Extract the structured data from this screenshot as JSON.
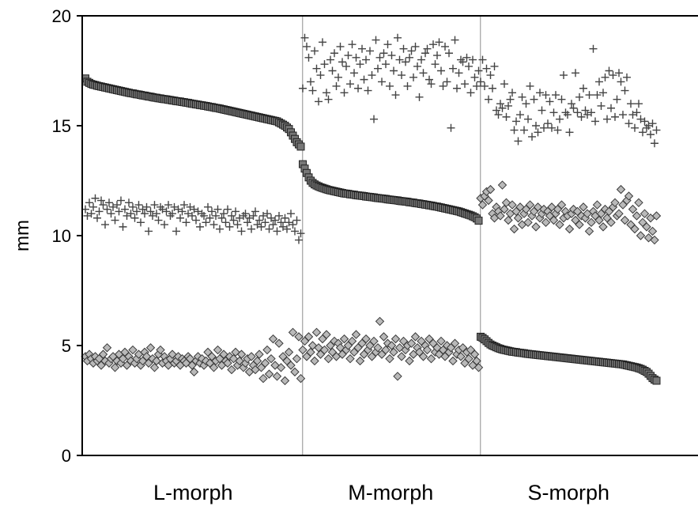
{
  "chart_data": {
    "type": "scatter",
    "title": "",
    "xlabel": "",
    "ylabel": "mm",
    "ylim": [
      0,
      20
    ],
    "yticks": [
      "0",
      "5",
      "10",
      "15",
      "20"
    ],
    "grid": false,
    "legend": "none",
    "groups": [
      "L-morph",
      "M-morph",
      "S-morph"
    ],
    "group_point_counts": [
      110,
      90,
      90
    ],
    "colors": {
      "axis": "#000000",
      "separator": "#a0a0a0",
      "square_fill": "#777777",
      "square_stroke": "#222222",
      "diamond_fill": "#b9b9b9",
      "diamond_stroke": "#3a3a3a",
      "plus": "#444444"
    },
    "series": [
      {
        "marker": "square",
        "description": "sorted descending within each morph",
        "segments": [
          {
            "group": "L-morph",
            "values": [
              17.15,
              17.0,
              16.95,
              16.9,
              16.87,
              16.85,
              16.82,
              16.8,
              16.78,
              16.76,
              16.74,
              16.72,
              16.7,
              16.68,
              16.66,
              16.64,
              16.62,
              16.6,
              16.58,
              16.56,
              16.54,
              16.52,
              16.5,
              16.48,
              16.47,
              16.45,
              16.43,
              16.42,
              16.4,
              16.38,
              16.37,
              16.35,
              16.33,
              16.32,
              16.3,
              16.28,
              16.27,
              16.25,
              16.24,
              16.22,
              16.21,
              16.2,
              16.18,
              16.17,
              16.15,
              16.14,
              16.12,
              16.11,
              16.1,
              16.08,
              16.07,
              16.05,
              16.04,
              16.02,
              16.0,
              15.99,
              15.97,
              15.96,
              15.94,
              15.93,
              15.91,
              15.9,
              15.88,
              15.86,
              15.85,
              15.83,
              15.81,
              15.8,
              15.78,
              15.76,
              15.74,
              15.72,
              15.7,
              15.68,
              15.66,
              15.64,
              15.62,
              15.6,
              15.58,
              15.56,
              15.54,
              15.52,
              15.5,
              15.48,
              15.46,
              15.44,
              15.42,
              15.4,
              15.38,
              15.36,
              15.34,
              15.32,
              15.3,
              15.28,
              15.26,
              15.24,
              15.22,
              15.2,
              15.15,
              15.1,
              15.05,
              15.0,
              14.92,
              14.85,
              14.7,
              14.55,
              14.4,
              14.25,
              14.15,
              14.05
            ]
          },
          {
            "group": "M-morph",
            "values": [
              13.25,
              13.05,
              12.85,
              12.65,
              12.5,
              12.4,
              12.33,
              12.28,
              12.24,
              12.2,
              12.17,
              12.14,
              12.11,
              12.08,
              12.06,
              12.04,
              12.02,
              12.0,
              11.98,
              11.96,
              11.94,
              11.92,
              11.91,
              11.9,
              11.88,
              11.87,
              11.86,
              11.84,
              11.83,
              11.82,
              11.81,
              11.8,
              11.78,
              11.77,
              11.76,
              11.75,
              11.74,
              11.72,
              11.71,
              11.7,
              11.69,
              11.68,
              11.67,
              11.65,
              11.64,
              11.63,
              11.62,
              11.61,
              11.6,
              11.58,
              11.57,
              11.56,
              11.55,
              11.54,
              11.52,
              11.51,
              11.5,
              11.48,
              11.47,
              11.46,
              11.44,
              11.43,
              11.41,
              11.4,
              11.38,
              11.37,
              11.35,
              11.33,
              11.32,
              11.3,
              11.28,
              11.26,
              11.24,
              11.22,
              11.2,
              11.18,
              11.16,
              11.14,
              11.12,
              11.1,
              11.07,
              11.04,
              11.01,
              10.98,
              10.95,
              10.92,
              10.88,
              10.84,
              10.78,
              10.68
            ]
          },
          {
            "group": "S-morph",
            "values": [
              5.4,
              5.35,
              5.28,
              5.2,
              5.12,
              5.05,
              5.0,
              4.96,
              4.92,
              4.88,
              4.85,
              4.82,
              4.8,
              4.78,
              4.76,
              4.74,
              4.72,
              4.71,
              4.7,
              4.68,
              4.67,
              4.66,
              4.65,
              4.63,
              4.62,
              4.61,
              4.6,
              4.59,
              4.58,
              4.57,
              4.56,
              4.55,
              4.54,
              4.53,
              4.52,
              4.51,
              4.5,
              4.49,
              4.48,
              4.47,
              4.46,
              4.45,
              4.44,
              4.43,
              4.42,
              4.41,
              4.4,
              4.39,
              4.38,
              4.37,
              4.36,
              4.35,
              4.34,
              4.33,
              4.32,
              4.31,
              4.3,
              4.29,
              4.28,
              4.27,
              4.26,
              4.25,
              4.24,
              4.23,
              4.22,
              4.21,
              4.2,
              4.19,
              4.18,
              4.17,
              4.16,
              4.15,
              4.14,
              4.12,
              4.1,
              4.08,
              4.06,
              4.04,
              4.02,
              4.0,
              3.97,
              3.94,
              3.9,
              3.85,
              3.8,
              3.72,
              3.62,
              3.52,
              3.45,
              3.4
            ]
          }
        ]
      },
      {
        "marker": "plus",
        "segments": [
          {
            "group": "L-morph",
            "values": [
              11.2,
              10.9,
              11.5,
              11.0,
              11.3,
              11.7,
              10.8,
              11.1,
              11.6,
              11.4,
              10.5,
              11.2,
              11.5,
              11.0,
              11.3,
              10.7,
              11.4,
              11.1,
              11.6,
              10.4,
              11.2,
              10.9,
              11.5,
              11.0,
              11.3,
              10.8,
              11.1,
              11.4,
              10.6,
              11.2,
              11.0,
              11.3,
              10.2,
              11.1,
              10.9,
              11.4,
              11.0,
              10.7,
              11.3,
              11.2,
              10.5,
              11.1,
              11.4,
              10.9,
              11.0,
              11.3,
              10.2,
              11.2,
              10.8,
              11.1,
              11.4,
              10.6,
              11.0,
              11.3,
              10.9,
              11.2,
              10.7,
              11.1,
              10.4,
              11.0,
              10.9,
              10.6,
              11.3,
              10.8,
              11.1,
              10.5,
              10.9,
              11.2,
              10.3,
              10.8,
              11.0,
              10.6,
              11.2,
              10.4,
              10.9,
              10.7,
              11.1,
              10.5,
              10.8,
              10.2,
              10.9,
              11.0,
              10.6,
              10.8,
              10.3,
              10.9,
              11.1,
              10.5,
              10.7,
              10.4,
              10.9,
              10.6,
              11.0,
              10.3,
              10.8,
              10.5,
              10.7,
              10.2,
              10.9,
              10.6,
              10.4,
              10.8,
              10.3,
              10.6,
              11.0,
              10.5,
              10.2,
              10.7,
              9.8,
              10.1
            ]
          },
          {
            "group": "M-morph",
            "values": [
              16.7,
              19.0,
              18.6,
              18.1,
              17.0,
              16.6,
              18.4,
              17.6,
              16.1,
              17.3,
              18.8,
              17.8,
              16.5,
              16.2,
              18.0,
              17.5,
              18.3,
              16.8,
              17.2,
              18.6,
              17.9,
              16.5,
              17.7,
              18.2,
              16.9,
              18.7,
              17.4,
              18.1,
              16.7,
              17.8,
              18.5,
              17.1,
              18.0,
              16.6,
              18.4,
              17.3,
              15.3,
              18.9,
              17.6,
              18.1,
              17.0,
              18.3,
              17.8,
              18.7,
              16.8,
              18.2,
              17.5,
              16.4,
              19.0,
              18.0,
              17.3,
              18.5,
              17.9,
              16.8,
              18.1,
              18.4,
              17.2,
              18.6,
              17.7,
              16.3,
              18.0,
              17.4,
              18.3,
              18.5,
              17.1,
              16.9,
              18.7,
              17.8,
              18.2,
              18.8,
              17.5,
              16.8,
              18.6,
              17.0,
              18.3,
              14.9,
              17.6,
              18.9,
              16.7,
              17.4,
              18.0,
              17.9,
              16.9,
              18.1,
              17.7,
              16.5,
              18.0,
              17.2,
              16.8,
              17.5
            ]
          },
          {
            "group": "S-morph",
            "values": [
              17.0,
              18.0,
              16.8,
              17.6,
              16.2,
              17.3,
              16.7,
              17.7,
              15.7,
              15.5,
              16.0,
              15.8,
              16.9,
              15.4,
              15.9,
              16.2,
              16.5,
              14.8,
              15.2,
              14.3,
              15.5,
              16.3,
              14.8,
              16.0,
              15.3,
              16.8,
              14.5,
              16.2,
              15.0,
              14.7,
              16.5,
              15.7,
              14.9,
              16.4,
              15.1,
              16.1,
              14.9,
              15.6,
              16.4,
              14.8,
              15.3,
              16.2,
              17.3,
              15.6,
              15.5,
              14.7,
              16.0,
              15.8,
              17.4,
              15.6,
              16.3,
              15.4,
              16.7,
              15.7,
              15.5,
              16.4,
              15.6,
              18.5,
              15.2,
              16.4,
              17.0,
              15.9,
              16.5,
              17.2,
              15.3,
              17.5,
              15.8,
              17.3,
              15.4,
              16.2,
              17.4,
              17.0,
              15.5,
              16.6,
              17.2,
              15.1,
              16.0,
              15.5,
              14.9,
              15.6,
              16.0,
              15.3,
              14.7,
              15.2,
              14.9,
              15.0,
              14.6,
              15.1,
              14.2,
              14.8
            ]
          }
        ]
      },
      {
        "marker": "diamond",
        "segments": [
          {
            "group": "L-morph",
            "values": [
              4.5,
              4.3,
              4.6,
              4.4,
              4.2,
              4.5,
              4.3,
              4.4,
              4.1,
              4.6,
              4.3,
              4.9,
              4.2,
              4.4,
              4.5,
              4.0,
              4.3,
              4.6,
              4.2,
              4.4,
              4.7,
              4.1,
              4.5,
              4.3,
              4.8,
              4.2,
              4.4,
              4.6,
              4.1,
              4.3,
              4.7,
              4.5,
              4.2,
              4.9,
              4.4,
              4.0,
              4.3,
              4.6,
              4.8,
              4.2,
              4.5,
              4.3,
              4.1,
              4.4,
              4.6,
              4.2,
              4.3,
              4.5,
              4.1,
              4.4,
              4.3,
              4.2,
              4.5,
              4.4,
              4.1,
              3.8,
              4.3,
              4.5,
              4.2,
              4.4,
              4.1,
              4.3,
              4.7,
              4.2,
              4.5,
              4.0,
              4.3,
              4.8,
              4.4,
              4.1,
              4.6,
              4.3,
              4.2,
              4.5,
              3.9,
              4.4,
              4.7,
              4.1,
              4.3,
              4.6,
              4.0,
              4.2,
              4.4,
              3.8,
              4.5,
              4.1,
              3.9,
              4.3,
              4.6,
              4.0,
              3.5,
              4.2,
              4.8,
              3.7,
              4.4,
              5.3,
              4.1,
              3.6,
              5.1,
              4.0,
              4.5,
              3.4,
              4.3,
              4.7,
              4.1,
              5.6,
              3.8,
              4.4,
              5.4,
              3.5
            ]
          },
          {
            "group": "M-morph",
            "values": [
              4.8,
              5.2,
              4.5,
              5.4,
              4.7,
              5.0,
              4.3,
              5.6,
              4.9,
              4.6,
              5.3,
              4.8,
              5.5,
              4.4,
              5.0,
              4.7,
              5.2,
              4.5,
              5.1,
              4.9,
              4.6,
              5.3,
              4.8,
              5.0,
              4.4,
              5.2,
              4.7,
              5.5,
              4.9,
              4.3,
              5.1,
              4.6,
              5.3,
              4.8,
              5.0,
              4.5,
              5.2,
              4.7,
              4.9,
              6.1,
              4.6,
              5.4,
              4.8,
              5.1,
              4.4,
              5.0,
              4.7,
              5.3,
              3.6,
              4.9,
              4.5,
              5.2,
              4.8,
              5.0,
              4.3,
              5.1,
              4.6,
              5.4,
              4.9,
              4.7,
              5.2,
              4.5,
              5.0,
              4.8,
              5.3,
              4.4,
              5.1,
              4.7,
              4.9,
              4.6,
              5.2,
              4.8,
              4.5,
              5.0,
              4.7,
              4.9,
              4.3,
              5.1,
              4.6,
              4.8,
              4.5,
              4.9,
              4.2,
              4.7,
              4.4,
              4.8,
              4.1,
              4.6,
              4.3,
              4.0
            ]
          },
          {
            "group": "S-morph",
            "values": [
              11.7,
              11.4,
              11.8,
              12.0,
              11.6,
              12.1,
              11.0,
              10.8,
              11.3,
              11.1,
              10.9,
              12.3,
              11.2,
              11.5,
              10.7,
              11.0,
              11.4,
              10.3,
              11.1,
              10.8,
              11.3,
              10.5,
              11.0,
              11.2,
              10.6,
              11.4,
              10.9,
              11.1,
              10.4,
              11.3,
              10.8,
              11.0,
              11.2,
              10.6,
              11.1,
              10.9,
              11.3,
              10.7,
              11.0,
              11.2,
              10.5,
              11.4,
              10.8,
              11.1,
              10.9,
              10.3,
              11.0,
              11.2,
              10.7,
              11.1,
              10.5,
              10.9,
              11.3,
              10.8,
              11.0,
              10.2,
              10.6,
              11.1,
              10.9,
              11.4,
              10.7,
              11.0,
              10.4,
              11.2,
              10.8,
              11.1,
              10.6,
              11.3,
              11.5,
              10.9,
              11.0,
              12.1,
              11.4,
              10.7,
              11.6,
              11.8,
              10.5,
              11.2,
              10.3,
              10.9,
              11.5,
              10.0,
              10.6,
              11.0,
              10.4,
              9.9,
              10.8,
              10.2,
              9.8,
              10.9
            ]
          }
        ]
      }
    ]
  }
}
